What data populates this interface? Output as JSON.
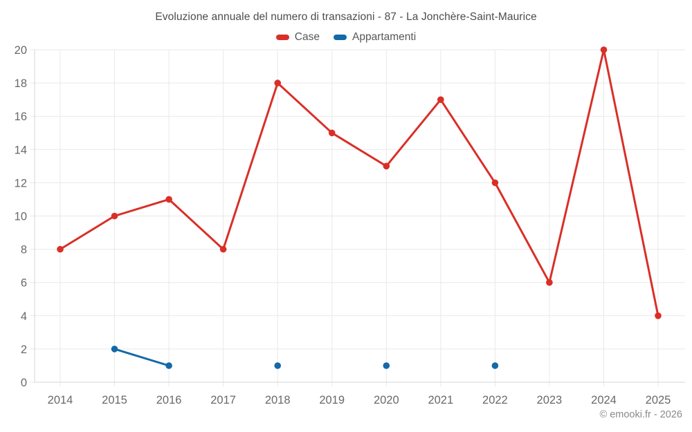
{
  "chart_data": {
    "type": "line",
    "title": "Evoluzione annuale del numero di transazioni - 87 - La Jonchère-Saint-Maurice",
    "x": [
      "2014",
      "2015",
      "2016",
      "2017",
      "2018",
      "2019",
      "2020",
      "2021",
      "2022",
      "2023",
      "2024",
      "2025"
    ],
    "ylim": [
      0,
      20
    ],
    "yticks": [
      0,
      2,
      4,
      6,
      8,
      10,
      12,
      14,
      16,
      18,
      20
    ],
    "grid": true,
    "legend_position": "top",
    "series": [
      {
        "name": "Case",
        "color": "#d92f27",
        "values": [
          8,
          10,
          11,
          8,
          18,
          15,
          13,
          17,
          12,
          6,
          20,
          4
        ]
      },
      {
        "name": "Appartamenti",
        "color": "#1469a6",
        "values": [
          null,
          2,
          1,
          null,
          1,
          null,
          1,
          null,
          1,
          null,
          null,
          null
        ]
      }
    ]
  },
  "footer": {
    "copyright": "© emooki.fr - 2026"
  }
}
